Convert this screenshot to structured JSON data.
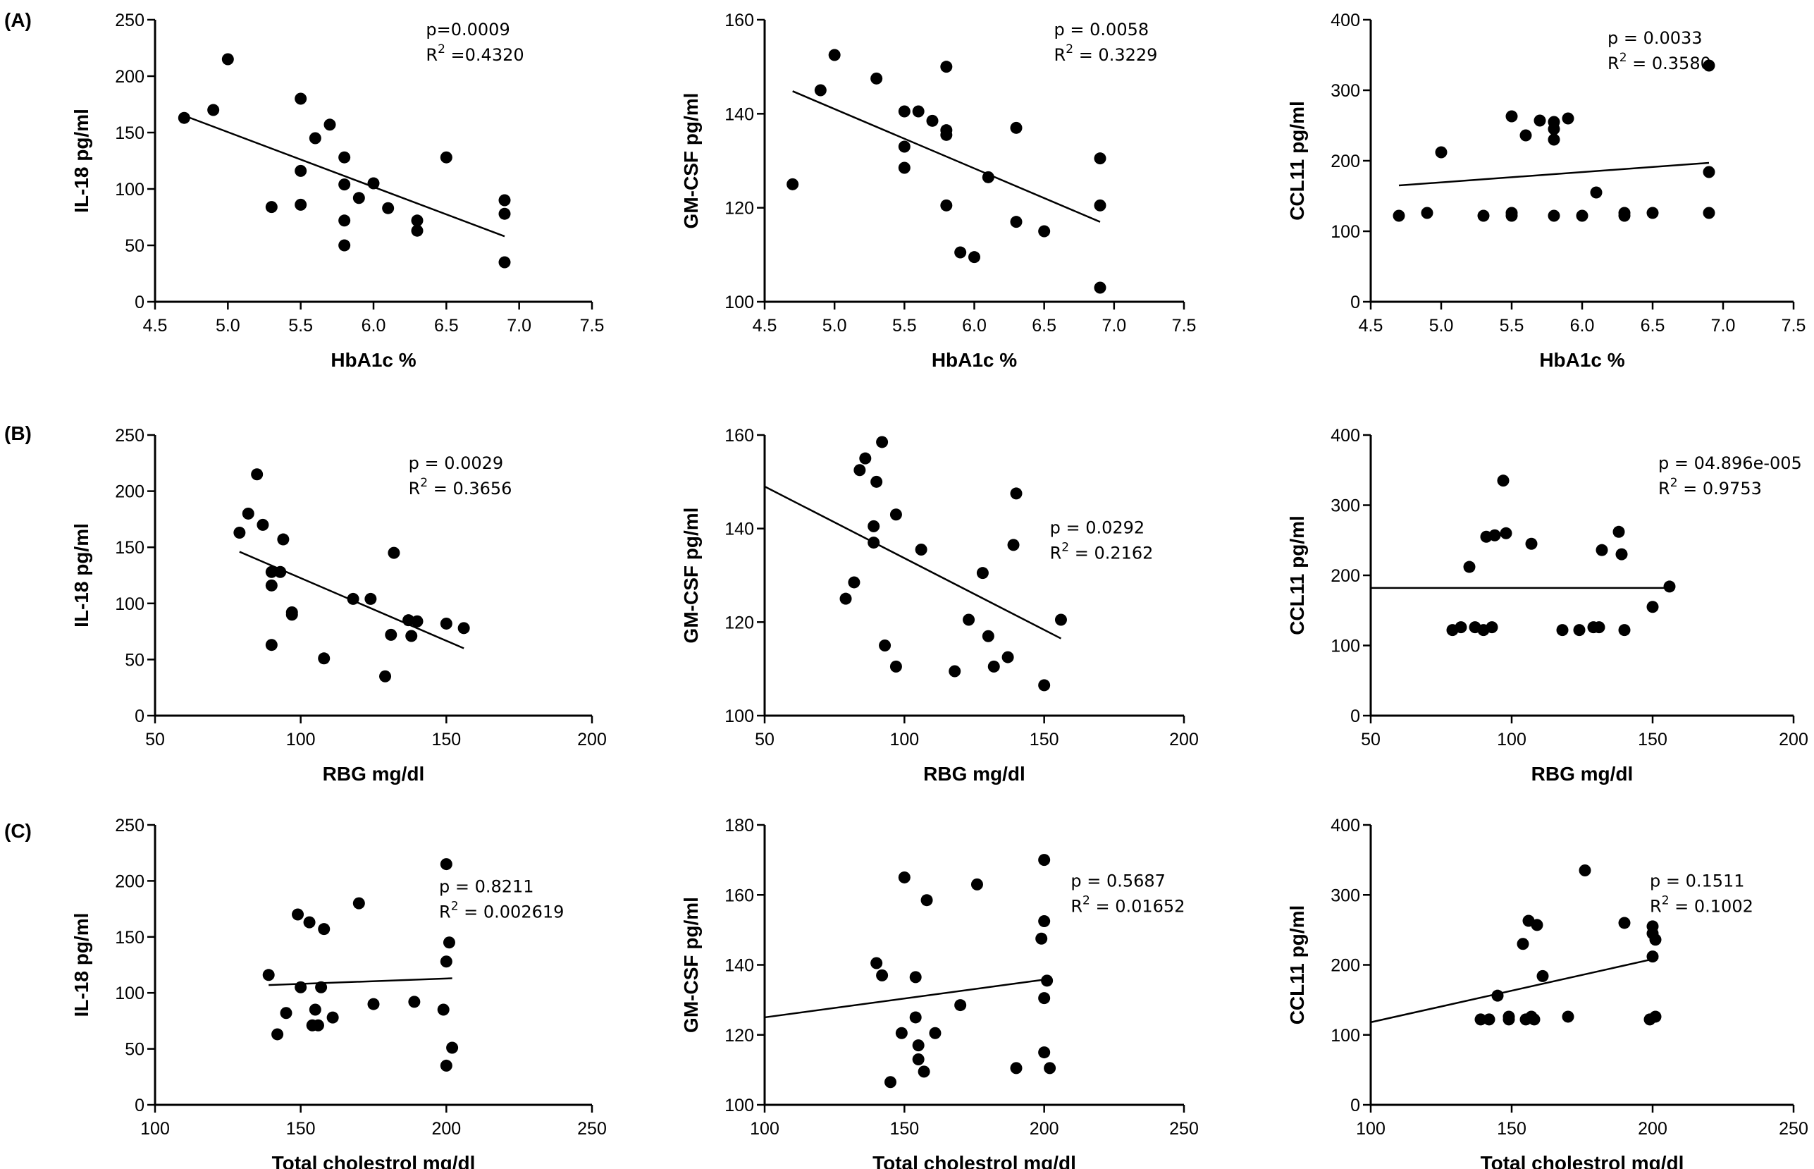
{
  "panel_labels": [
    "(A)",
    "(B)",
    "(C)"
  ],
  "chart_data": [
    {
      "type": "scatter",
      "row": "A",
      "col": 0,
      "xlabel": "HbA1c %",
      "ylabel": "IL-18 pg/ml",
      "xlim": [
        4.5,
        7.5
      ],
      "xticks": [
        4.5,
        5.0,
        5.5,
        6.0,
        6.5,
        7.0,
        7.5
      ],
      "xtick_labels": [
        "4.5",
        "5.0",
        "5.5",
        "6.0",
        "6.5",
        "7.0",
        "7.5"
      ],
      "ylim": [
        0,
        250
      ],
      "yticks": [
        0,
        50,
        100,
        150,
        200,
        250
      ],
      "annotation": {
        "p": "p=0.0009",
        "r2_prefix": "R",
        "r2_sup": "2",
        "r2_value": " =0.4320"
      },
      "fit": {
        "x": [
          4.7,
          6.9
        ],
        "y": [
          165,
          58
        ]
      },
      "points": [
        [
          4.7,
          163
        ],
        [
          4.9,
          170
        ],
        [
          5.0,
          215
        ],
        [
          5.3,
          84
        ],
        [
          5.5,
          180
        ],
        [
          5.5,
          116
        ],
        [
          5.5,
          86
        ],
        [
          5.6,
          145
        ],
        [
          5.7,
          157
        ],
        [
          5.8,
          128
        ],
        [
          5.8,
          104
        ],
        [
          5.8,
          72
        ],
        [
          5.8,
          50
        ],
        [
          5.9,
          92
        ],
        [
          6.0,
          105
        ],
        [
          6.1,
          83
        ],
        [
          6.3,
          72
        ],
        [
          6.3,
          63
        ],
        [
          6.5,
          128
        ],
        [
          6.9,
          90
        ],
        [
          6.9,
          78
        ],
        [
          6.9,
          35
        ]
      ]
    },
    {
      "type": "scatter",
      "row": "A",
      "col": 1,
      "xlabel": "HbA1c %",
      "ylabel": "GM-CSF pg/ml",
      "xlim": [
        4.5,
        7.5
      ],
      "xticks": [
        4.5,
        5.0,
        5.5,
        6.0,
        6.5,
        7.0,
        7.5
      ],
      "xtick_labels": [
        "4.5",
        "5.0",
        "5.5",
        "6.0",
        "6.5",
        "7.0",
        "7.5"
      ],
      "ylim": [
        100,
        160
      ],
      "yticks": [
        100,
        120,
        140,
        160
      ],
      "annotation": {
        "p": "p = 0.0058",
        "r2_prefix": "R",
        "r2_sup": "2",
        "r2_value": " = 0.3229"
      },
      "fit": {
        "x": [
          4.7,
          6.9
        ],
        "y": [
          144.8,
          117
        ]
      },
      "points": [
        [
          4.7,
          125
        ],
        [
          4.9,
          145
        ],
        [
          5.0,
          152.5
        ],
        [
          5.3,
          147.5
        ],
        [
          5.5,
          140.5
        ],
        [
          5.5,
          133
        ],
        [
          5.5,
          128.5
        ],
        [
          5.6,
          140.5
        ],
        [
          5.7,
          138.5
        ],
        [
          5.8,
          150
        ],
        [
          5.8,
          136.5
        ],
        [
          5.8,
          135.5
        ],
        [
          5.8,
          120.5
        ],
        [
          5.9,
          110.5
        ],
        [
          6.0,
          109.5
        ],
        [
          6.1,
          126.5
        ],
        [
          6.3,
          137
        ],
        [
          6.3,
          117
        ],
        [
          6.5,
          115
        ],
        [
          6.9,
          130.5
        ],
        [
          6.9,
          120.5
        ],
        [
          6.9,
          103
        ]
      ]
    },
    {
      "type": "scatter",
      "row": "A",
      "col": 2,
      "xlabel": "HbA1c %",
      "ylabel": "CCL11 pg/ml",
      "xlim": [
        4.5,
        7.5
      ],
      "xticks": [
        4.5,
        5.0,
        5.5,
        6.0,
        6.5,
        7.0,
        7.5
      ],
      "xtick_labels": [
        "4.5",
        "5.0",
        "5.5",
        "6.0",
        "6.5",
        "7.0",
        "7.5"
      ],
      "ylim": [
        0,
        400
      ],
      "yticks": [
        0,
        100,
        200,
        300,
        400
      ],
      "annotation": {
        "p": "p = 0.0033",
        "r2_prefix": "R",
        "r2_sup": "2",
        "r2_value": " = 0.3580"
      },
      "fit": {
        "x": [
          4.7,
          6.9
        ],
        "y": [
          165,
          197
        ]
      },
      "points": [
        [
          4.7,
          122
        ],
        [
          4.9,
          126
        ],
        [
          5.0,
          212
        ],
        [
          5.3,
          122
        ],
        [
          5.5,
          263
        ],
        [
          5.5,
          126
        ],
        [
          5.5,
          122
        ],
        [
          5.6,
          236
        ],
        [
          5.7,
          257
        ],
        [
          5.8,
          255
        ],
        [
          5.8,
          245
        ],
        [
          5.8,
          230
        ],
        [
          5.8,
          122
        ],
        [
          5.9,
          260
        ],
        [
          6.0,
          122
        ],
        [
          6.1,
          155
        ],
        [
          6.3,
          126
        ],
        [
          6.3,
          122
        ],
        [
          6.5,
          126
        ],
        [
          6.9,
          335
        ],
        [
          6.9,
          184
        ],
        [
          6.9,
          126
        ]
      ]
    },
    {
      "type": "scatter",
      "row": "B",
      "col": 0,
      "xlabel": "RBG mg/dl",
      "ylabel": "IL-18 pg/ml",
      "xlim": [
        50,
        200
      ],
      "xticks": [
        50,
        100,
        150,
        200
      ],
      "xtick_labels": [
        "50",
        "100",
        "150",
        "200"
      ],
      "ylim": [
        0,
        250
      ],
      "yticks": [
        0,
        50,
        100,
        150,
        200,
        250
      ],
      "annotation": {
        "p": "p = 0.0029",
        "r2_prefix": "R",
        "r2_sup": "2",
        "r2_value": " = 0.3656"
      },
      "fit": {
        "x": [
          79,
          156
        ],
        "y": [
          146,
          60
        ]
      },
      "points": [
        [
          79,
          163
        ],
        [
          82,
          180
        ],
        [
          85,
          215
        ],
        [
          87,
          170
        ],
        [
          90,
          116
        ],
        [
          90,
          128
        ],
        [
          90,
          63
        ],
        [
          93,
          128
        ],
        [
          94,
          157
        ],
        [
          97,
          92
        ],
        [
          97,
          90
        ],
        [
          108,
          51
        ],
        [
          118,
          104
        ],
        [
          124,
          104
        ],
        [
          129,
          35
        ],
        [
          131,
          72
        ],
        [
          132,
          145
        ],
        [
          137,
          85
        ],
        [
          138,
          71
        ],
        [
          140,
          84
        ],
        [
          150,
          82
        ],
        [
          156,
          78
        ]
      ]
    },
    {
      "type": "scatter",
      "row": "B",
      "col": 1,
      "xlabel": "RBG mg/dl",
      "ylabel": "GM-CSF pg/ml",
      "xlim": [
        50,
        200
      ],
      "xticks": [
        50,
        100,
        150,
        200
      ],
      "xtick_labels": [
        "50",
        "100",
        "150",
        "200"
      ],
      "ylim": [
        100,
        160
      ],
      "yticks": [
        100,
        120,
        140,
        160
      ],
      "annotation": {
        "p": "p = 0.0292",
        "r2_prefix": "R",
        "r2_sup": "2",
        "r2_value": " = 0.2162"
      },
      "fit": {
        "x": [
          50,
          156
        ],
        "y": [
          149,
          116.5
        ]
      },
      "points": [
        [
          79,
          125
        ],
        [
          82,
          128.5
        ],
        [
          84,
          152.5
        ],
        [
          86,
          155
        ],
        [
          89,
          137
        ],
        [
          89,
          140.5
        ],
        [
          90,
          150
        ],
        [
          92,
          158.5
        ],
        [
          93,
          115
        ],
        [
          97,
          143
        ],
        [
          97,
          110.5
        ],
        [
          106,
          135.5
        ],
        [
          118,
          109.5
        ],
        [
          123,
          120.5
        ],
        [
          128,
          130.5
        ],
        [
          130,
          117
        ],
        [
          132,
          110.5
        ],
        [
          137,
          112.5
        ],
        [
          139,
          136.5
        ],
        [
          140,
          147.5
        ],
        [
          150,
          106.5
        ],
        [
          156,
          120.5
        ]
      ]
    },
    {
      "type": "scatter",
      "row": "B",
      "col": 2,
      "xlabel": "RBG mg/dl",
      "ylabel": "CCL11 pg/ml",
      "xlim": [
        50,
        200
      ],
      "xticks": [
        50,
        100,
        150,
        200
      ],
      "xtick_labels": [
        "50",
        "100",
        "150",
        "200"
      ],
      "ylim": [
        0,
        400
      ],
      "yticks": [
        0,
        100,
        200,
        300,
        400
      ],
      "annotation": {
        "p": "p = 04.896e-005",
        "r2_prefix": "R",
        "r2_sup": "2",
        "r2_value": " = 0.9753"
      },
      "fit": {
        "x": [
          50,
          156
        ],
        "y": [
          182,
          182
        ]
      },
      "points": [
        [
          79,
          122
        ],
        [
          82,
          126
        ],
        [
          85,
          212
        ],
        [
          87,
          126
        ],
        [
          90,
          122
        ],
        [
          91,
          255
        ],
        [
          93,
          126
        ],
        [
          94,
          257
        ],
        [
          97,
          335
        ],
        [
          98,
          260
        ],
        [
          107,
          245
        ],
        [
          118,
          122
        ],
        [
          124,
          122
        ],
        [
          129,
          126
        ],
        [
          131,
          126
        ],
        [
          132,
          236
        ],
        [
          138,
          262
        ],
        [
          139,
          230
        ],
        [
          140,
          122
        ],
        [
          150,
          155
        ],
        [
          156,
          184
        ]
      ]
    },
    {
      "type": "scatter",
      "row": "C",
      "col": 0,
      "xlabel": "Total cholestrol mg/dl",
      "ylabel": "IL-18 pg/ml",
      "xlim": [
        100,
        250
      ],
      "xticks": [
        100,
        150,
        200,
        250
      ],
      "xtick_labels": [
        "100",
        "150",
        "200",
        "250"
      ],
      "ylim": [
        0,
        250
      ],
      "yticks": [
        0,
        50,
        100,
        150,
        200,
        250
      ],
      "annotation": {
        "p": "p = 0.8211",
        "r2_prefix": "R",
        "r2_sup": "2",
        "r2_value": " = 0.002619"
      },
      "fit": {
        "x": [
          139,
          202
        ],
        "y": [
          107,
          113
        ]
      },
      "points": [
        [
          139,
          116
        ],
        [
          142,
          63
        ],
        [
          145,
          82
        ],
        [
          149,
          170
        ],
        [
          150,
          105
        ],
        [
          153,
          163
        ],
        [
          154,
          71
        ],
        [
          155,
          85
        ],
        [
          156,
          71
        ],
        [
          157,
          105
        ],
        [
          158,
          157
        ],
        [
          161,
          78
        ],
        [
          170,
          180
        ],
        [
          175,
          90
        ],
        [
          189,
          92
        ],
        [
          199,
          85
        ],
        [
          200,
          215
        ],
        [
          200,
          128
        ],
        [
          201,
          145
        ],
        [
          200,
          35
        ],
        [
          202,
          51
        ]
      ]
    },
    {
      "type": "scatter",
      "row": "C",
      "col": 1,
      "xlabel": "Total cholestrol mg/dl",
      "ylabel": "GM-CSF pg/ml",
      "xlim": [
        100,
        250
      ],
      "xticks": [
        100,
        150,
        200,
        250
      ],
      "xtick_labels": [
        "100",
        "150",
        "200",
        "250"
      ],
      "ylim": [
        100,
        180
      ],
      "yticks": [
        100,
        120,
        140,
        160,
        180
      ],
      "annotation": {
        "p": "p = 0.5687",
        "r2_prefix": "R",
        "r2_sup": "2",
        "r2_value": " = 0.01652"
      },
      "fit": {
        "x": [
          100,
          202
        ],
        "y": [
          125,
          136
        ]
      },
      "points": [
        [
          140,
          140.5
        ],
        [
          142,
          137
        ],
        [
          145,
          106.5
        ],
        [
          149,
          120.5
        ],
        [
          150,
          165
        ],
        [
          154,
          136.5
        ],
        [
          154,
          125
        ],
        [
          155,
          117
        ],
        [
          155,
          113
        ],
        [
          157,
          109.5
        ],
        [
          158,
          158.5
        ],
        [
          161,
          120.5
        ],
        [
          170,
          128.5
        ],
        [
          176,
          163
        ],
        [
          190,
          110.5
        ],
        [
          200,
          170
        ],
        [
          200,
          152.5
        ],
        [
          199,
          147.5
        ],
        [
          200,
          130.5
        ],
        [
          201,
          135.5
        ],
        [
          200,
          115
        ],
        [
          202,
          110.5
        ]
      ]
    },
    {
      "type": "scatter",
      "row": "C",
      "col": 2,
      "xlabel": "Total cholestrol mg/dl",
      "ylabel": "CCL11 pg/ml",
      "xlim": [
        100,
        250
      ],
      "xticks": [
        100,
        150,
        200,
        250
      ],
      "xtick_labels": [
        "100",
        "150",
        "200",
        "250"
      ],
      "ylim": [
        0,
        400
      ],
      "yticks": [
        0,
        100,
        200,
        300,
        400
      ],
      "annotation": {
        "p": "p = 0.1511",
        "r2_prefix": "R",
        "r2_sup": "2",
        "r2_value": " = 0.1002"
      },
      "fit": {
        "x": [
          100,
          202
        ],
        "y": [
          118,
          210
        ]
      },
      "points": [
        [
          139,
          122
        ],
        [
          142,
          122
        ],
        [
          145,
          156
        ],
        [
          149,
          126
        ],
        [
          149,
          122
        ],
        [
          154,
          230
        ],
        [
          155,
          122
        ],
        [
          156,
          263
        ],
        [
          157,
          126
        ],
        [
          158,
          122
        ],
        [
          159,
          257
        ],
        [
          161,
          184
        ],
        [
          170,
          126
        ],
        [
          176,
          335
        ],
        [
          190,
          260
        ],
        [
          200,
          255
        ],
        [
          200,
          245
        ],
        [
          201,
          236
        ],
        [
          200,
          212
        ],
        [
          199,
          122
        ],
        [
          201,
          126
        ]
      ]
    }
  ]
}
